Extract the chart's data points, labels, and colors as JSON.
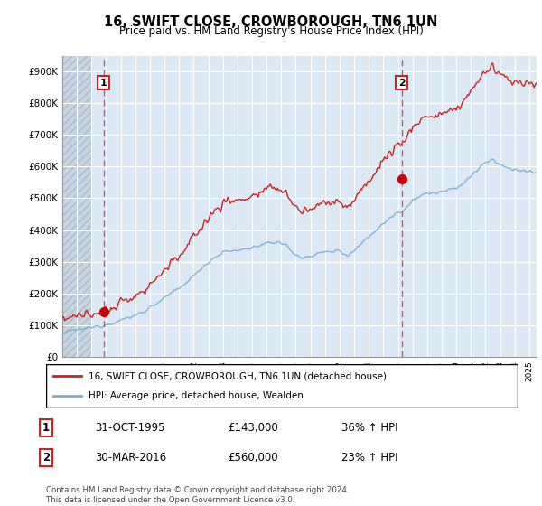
{
  "title": "16, SWIFT CLOSE, CROWBOROUGH, TN6 1UN",
  "subtitle": "Price paid vs. HM Land Registry's House Price Index (HPI)",
  "ylim": [
    0,
    950000
  ],
  "yticks": [
    0,
    100000,
    200000,
    300000,
    400000,
    500000,
    600000,
    700000,
    800000,
    900000
  ],
  "ytick_labels": [
    "£0",
    "£100K",
    "£200K",
    "£300K",
    "£400K",
    "£500K",
    "£600K",
    "£700K",
    "£800K",
    "£900K"
  ],
  "background_color": "#ffffff",
  "plot_bg_color": "#dce9f5",
  "grid_color": "#ffffff",
  "sale1_date": 1995.83,
  "sale1_price": 143000,
  "sale2_date": 2016.25,
  "sale2_price": 560000,
  "vline_color": "#e05050",
  "dot_color": "#cc0000",
  "red_line_color": "#cc2222",
  "blue_line_color": "#7aadd4",
  "legend_entry1": "16, SWIFT CLOSE, CROWBOROUGH, TN6 1UN (detached house)",
  "legend_entry2": "HPI: Average price, detached house, Wealden",
  "table_row1": [
    "1",
    "31-OCT-1995",
    "£143,000",
    "36% ↑ HPI"
  ],
  "table_row2": [
    "2",
    "30-MAR-2016",
    "£560,000",
    "23% ↑ HPI"
  ],
  "footnote": "Contains HM Land Registry data © Crown copyright and database right 2024.\nThis data is licensed under the Open Government Licence v3.0.",
  "xmin": 1993.0,
  "xmax": 2025.5,
  "hatch_end": 1995.0
}
